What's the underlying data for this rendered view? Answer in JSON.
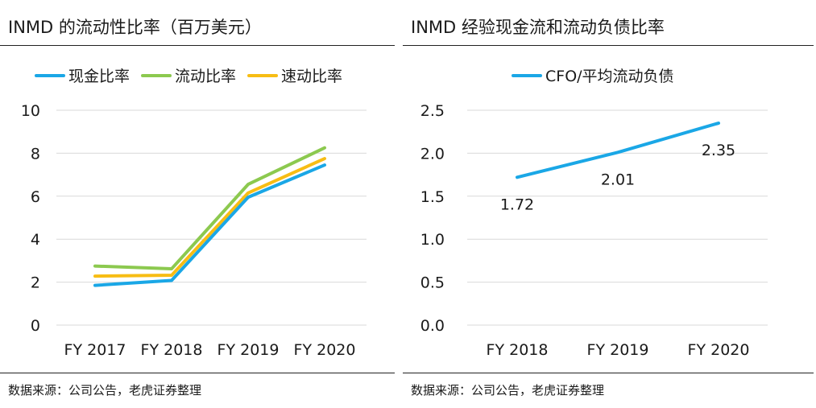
{
  "panels": [
    {
      "title": "INMD 的流动性比率（百万美元）",
      "source": "数据来源：公司公告，老虎证券整理"
    },
    {
      "title": "INMD 经验现金流和流动负债比率",
      "source": "数据来源：公司公告，老虎证券整理"
    }
  ],
  "colors": {
    "blue": "#1aa7e6",
    "green": "#8cc94f",
    "orange": "#f7bd14",
    "grid": "#d9d9d9",
    "text": "#1a1a1a"
  },
  "chart_data": [
    {
      "type": "line",
      "title": "INMD 的流动性比率（百万美元）",
      "categories": [
        "FY 2017",
        "FY 2018",
        "FY 2019",
        "FY 2020"
      ],
      "series": [
        {
          "name": "现金比率",
          "color": "#1aa7e6",
          "values": [
            1.85,
            2.08,
            5.95,
            7.45
          ]
        },
        {
          "name": "流动比率",
          "color": "#8cc94f",
          "values": [
            2.75,
            2.62,
            6.55,
            8.25
          ]
        },
        {
          "name": "速动比率",
          "color": "#f7bd14",
          "values": [
            2.28,
            2.32,
            6.15,
            7.75
          ]
        }
      ],
      "ylim": [
        0,
        10
      ],
      "yticks": [
        "0",
        "2",
        "4",
        "6",
        "8",
        "10"
      ],
      "ytick_values": [
        0,
        2,
        4,
        6,
        8,
        10
      ],
      "grid": true,
      "legend": "top"
    },
    {
      "type": "line",
      "title": "INMD 经验现金流和流动负债比率",
      "categories": [
        "FY 2018",
        "FY 2019",
        "FY 2020"
      ],
      "series": [
        {
          "name": "CFO/平均流动负债",
          "color": "#1aa7e6",
          "values": [
            1.72,
            2.01,
            2.35
          ],
          "data_labels": [
            "1.72",
            "2.01",
            "2.35"
          ]
        }
      ],
      "ylim": [
        0,
        2.5
      ],
      "yticks": [
        "0.0",
        "0.5",
        "1.0",
        "1.5",
        "2.0",
        "2.5"
      ],
      "ytick_values": [
        0,
        0.5,
        1.0,
        1.5,
        2.0,
        2.5
      ],
      "grid": true,
      "legend": "top"
    }
  ]
}
